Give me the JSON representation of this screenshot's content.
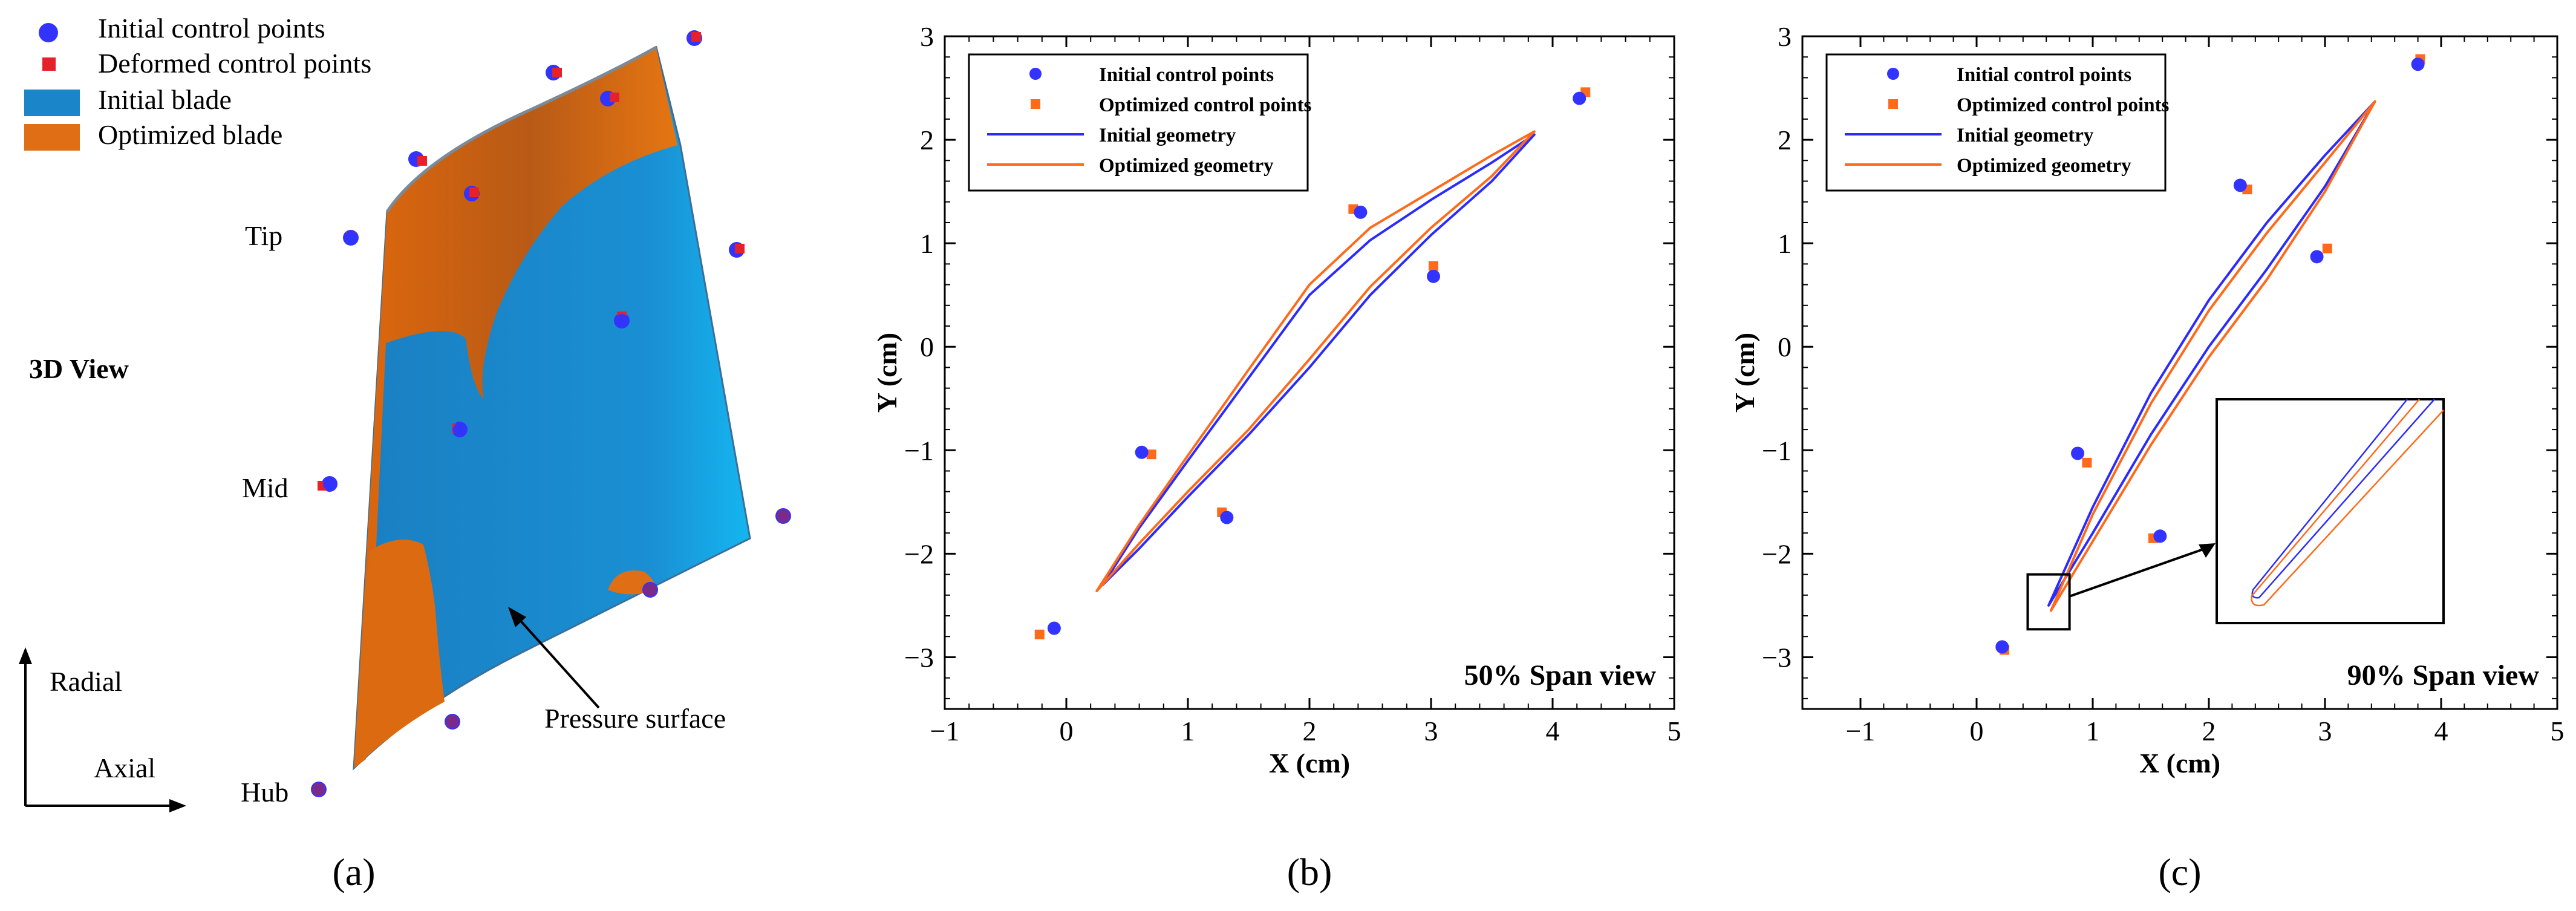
{
  "colors": {
    "initial": "#2b2bff",
    "optimized": "#ff6a1a",
    "marker_initial": "#3333ff",
    "marker_deformed": "#e8202a",
    "blade_initial": "#1a86c9",
    "blade_optimized": "#e06e14"
  },
  "panel_a": {
    "legend": [
      "Initial control points",
      "Deformed control points",
      "Initial blade",
      "Optimized blade"
    ],
    "view_label": "3D View",
    "tip_label": "Tip",
    "mid_label": "Mid",
    "hub_label": "Hub",
    "radial_label": "Radial",
    "axial_label": "Axial",
    "pressure_label": "Pressure surface",
    "caption": "(a)"
  },
  "chart_data": [
    {
      "type": "scatter",
      "title": "50% Span view",
      "caption": "(b)",
      "xlabel": "X (cm)",
      "ylabel": "Y (cm)",
      "xlim": [
        -1,
        5
      ],
      "ylim": [
        -3.5,
        3
      ],
      "xticks": [
        -1,
        0,
        1,
        2,
        3,
        4,
        5
      ],
      "yticks": [
        -3,
        -2,
        -1,
        0,
        1,
        2,
        3
      ],
      "legend": [
        "Initial control points",
        "Optimized control points",
        "Initial geometry",
        "Optimized geometry"
      ],
      "series": [
        {
          "name": "Initial control points",
          "kind": "points",
          "x": [
            -0.1,
            0.62,
            1.32,
            2.42,
            3.02,
            4.22
          ],
          "y": [
            -2.72,
            -1.02,
            -1.65,
            1.3,
            0.68,
            2.4
          ]
        },
        {
          "name": "Optimized control points",
          "kind": "points",
          "x": [
            -0.22,
            0.7,
            1.28,
            2.36,
            3.02,
            4.27
          ],
          "y": [
            -2.78,
            -1.04,
            -1.6,
            1.33,
            0.78,
            2.46
          ]
        },
        {
          "name": "Initial geometry",
          "kind": "closed-curve",
          "upper_x": [
            0.3,
            0.6,
            1.0,
            1.5,
            2.0,
            2.5,
            3.0,
            3.5,
            3.85
          ],
          "upper_y": [
            -2.3,
            -1.75,
            -1.1,
            -0.3,
            0.5,
            1.03,
            1.42,
            1.78,
            2.05
          ],
          "lower_x": [
            0.3,
            0.6,
            1.0,
            1.5,
            2.0,
            2.5,
            3.0,
            3.5,
            3.85
          ],
          "lower_y": [
            -2.3,
            -1.95,
            -1.45,
            -0.85,
            -0.2,
            0.5,
            1.08,
            1.6,
            2.05
          ]
        },
        {
          "name": "Optimized geometry",
          "kind": "closed-curve",
          "upper_x": [
            0.25,
            0.6,
            1.0,
            1.5,
            2.0,
            2.5,
            3.0,
            3.5,
            3.85
          ],
          "upper_y": [
            -2.36,
            -1.72,
            -1.05,
            -0.22,
            0.6,
            1.15,
            1.5,
            1.85,
            2.08
          ],
          "lower_x": [
            0.25,
            0.6,
            1.0,
            1.5,
            2.0,
            2.5,
            3.0,
            3.5,
            3.85
          ],
          "lower_y": [
            -2.36,
            -1.9,
            -1.4,
            -0.8,
            -0.12,
            0.58,
            1.15,
            1.65,
            2.08
          ]
        }
      ]
    },
    {
      "type": "scatter",
      "title": "90% Span view",
      "caption": "(c)",
      "xlabel": "X (cm)",
      "ylabel": "Y (cm)",
      "xlim": [
        -1.5,
        5
      ],
      "ylim": [
        -3.5,
        3
      ],
      "xticks": [
        -1,
        0,
        1,
        2,
        3,
        4,
        5
      ],
      "yticks": [
        -3,
        -2,
        -1,
        0,
        1,
        2,
        3
      ],
      "legend": [
        "Initial control points",
        "Optimized control points",
        "Initial geometry",
        "Optimized geometry"
      ],
      "series": [
        {
          "name": "Initial control points",
          "kind": "points",
          "x": [
            0.22,
            0.87,
            1.58,
            2.27,
            2.93,
            3.8
          ],
          "y": [
            -2.9,
            -1.03,
            -1.83,
            1.56,
            0.87,
            2.73
          ]
        },
        {
          "name": "Optimized control points",
          "kind": "points",
          "x": [
            0.24,
            0.95,
            1.52,
            2.33,
            3.02,
            3.82
          ],
          "y": [
            -2.93,
            -1.12,
            -1.85,
            1.52,
            0.95,
            2.78
          ]
        },
        {
          "name": "Initial geometry",
          "kind": "closed-curve",
          "upper_x": [
            0.62,
            1.0,
            1.5,
            2.0,
            2.5,
            3.0,
            3.43
          ],
          "upper_y": [
            -2.5,
            -1.55,
            -0.45,
            0.45,
            1.2,
            1.85,
            2.37
          ],
          "lower_x": [
            0.62,
            1.0,
            1.5,
            2.0,
            2.5,
            3.0,
            3.43
          ],
          "lower_y": [
            -2.5,
            -1.8,
            -0.85,
            0.0,
            0.75,
            1.55,
            2.37
          ]
        },
        {
          "name": "Optimized geometry",
          "kind": "closed-curve",
          "upper_x": [
            0.64,
            1.0,
            1.5,
            2.0,
            2.5,
            3.0,
            3.43
          ],
          "upper_y": [
            -2.55,
            -1.62,
            -0.55,
            0.35,
            1.1,
            1.78,
            2.37
          ],
          "lower_x": [
            0.64,
            1.0,
            1.5,
            2.0,
            2.5,
            3.0,
            3.43
          ],
          "lower_y": [
            -2.55,
            -1.88,
            -0.95,
            -0.1,
            0.65,
            1.5,
            2.37
          ]
        }
      ]
    }
  ]
}
